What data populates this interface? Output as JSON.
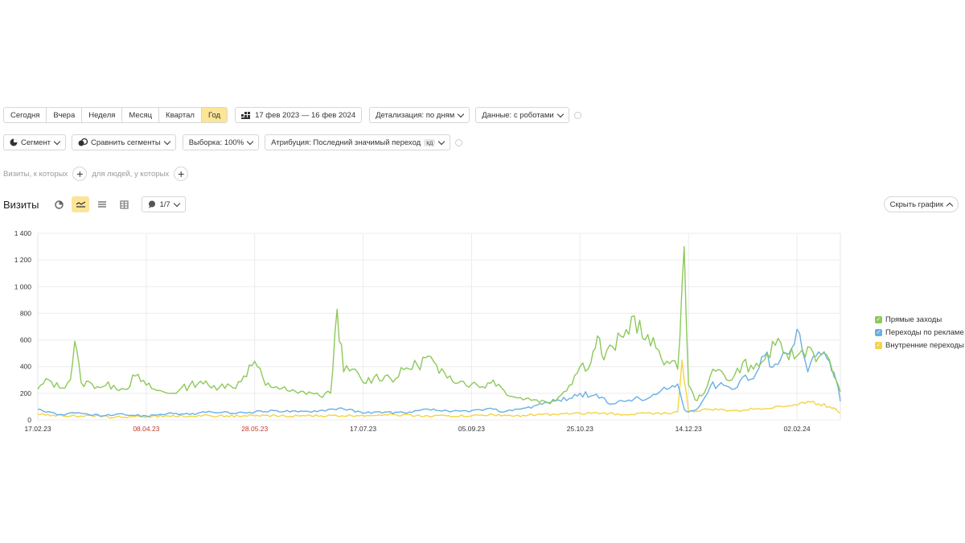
{
  "toolbar1": {
    "periods": [
      "Сегодня",
      "Вчера",
      "Неделя",
      "Месяц",
      "Квартал",
      "Год"
    ],
    "active_period": "Год",
    "date_range": "17 фев 2023 — 16 фев 2024",
    "detail": "Детализация: по дням",
    "data": "Данные: с роботами"
  },
  "toolbar2": {
    "segment": "Сегмент",
    "compare": "Сравнить сегменты",
    "sample": "Выборка: 100%",
    "attribution": "Атрибуция: Последний значимый переход",
    "attribution_badge": "кд"
  },
  "filters": {
    "visits_label": "Визиты, к которых",
    "people_label": "для людей, у которых"
  },
  "report": {
    "title": "Визиты",
    "metrics_count": "1/7",
    "hide_chart": "Скрыть график"
  },
  "colors": {
    "accent": "#fbe597",
    "green": "#8dc95a",
    "blue": "#6ab0e3",
    "yellow": "#f3d444",
    "red_label": "#c0392b"
  },
  "chart_data": {
    "type": "line",
    "xlabel": "",
    "ylabel": "",
    "ylim": [
      0,
      1400
    ],
    "y_ticks": [
      "0",
      "200",
      "400",
      "600",
      "800",
      "1 000",
      "1 200",
      "1 400"
    ],
    "x_ticks": [
      {
        "label": "17.02.23",
        "day": 0,
        "weekend": false
      },
      {
        "label": "08.04.23",
        "day": 50,
        "weekend": true
      },
      {
        "label": "28.05.23",
        "day": 100,
        "weekend": true
      },
      {
        "label": "17.07.23",
        "day": 150,
        "weekend": false
      },
      {
        "label": "05.09.23",
        "day": 200,
        "weekend": false
      },
      {
        "label": "25.10.23",
        "day": 250,
        "weekend": false
      },
      {
        "label": "14.12.23",
        "day": 300,
        "weekend": false
      },
      {
        "label": "02.02.24",
        "day": 350,
        "weekend": false
      }
    ],
    "grid": true,
    "legend_position": "right",
    "series": [
      {
        "name": "Прямые заходы",
        "color": "#8dc95a",
        "points": [
          [
            0,
            230
          ],
          [
            5,
            300
          ],
          [
            10,
            240
          ],
          [
            15,
            300
          ],
          [
            17,
            590
          ],
          [
            20,
            280
          ],
          [
            25,
            270
          ],
          [
            30,
            250
          ],
          [
            35,
            260
          ],
          [
            40,
            230
          ],
          [
            45,
            330
          ],
          [
            50,
            260
          ],
          [
            55,
            220
          ],
          [
            60,
            200
          ],
          [
            65,
            220
          ],
          [
            70,
            260
          ],
          [
            75,
            290
          ],
          [
            80,
            240
          ],
          [
            85,
            270
          ],
          [
            90,
            240
          ],
          [
            95,
            330
          ],
          [
            100,
            440
          ],
          [
            105,
            260
          ],
          [
            110,
            250
          ],
          [
            115,
            220
          ],
          [
            120,
            200
          ],
          [
            125,
            210
          ],
          [
            130,
            180
          ],
          [
            135,
            200
          ],
          [
            138,
            830
          ],
          [
            141,
            360
          ],
          [
            145,
            380
          ],
          [
            150,
            280
          ],
          [
            155,
            320
          ],
          [
            160,
            330
          ],
          [
            165,
            310
          ],
          [
            170,
            390
          ],
          [
            175,
            410
          ],
          [
            180,
            480
          ],
          [
            185,
            350
          ],
          [
            190,
            330
          ],
          [
            195,
            290
          ],
          [
            200,
            270
          ],
          [
            205,
            250
          ],
          [
            210,
            300
          ],
          [
            215,
            220
          ],
          [
            220,
            170
          ],
          [
            225,
            160
          ],
          [
            230,
            150
          ],
          [
            235,
            130
          ],
          [
            240,
            170
          ],
          [
            245,
            260
          ],
          [
            250,
            400
          ],
          [
            255,
            430
          ],
          [
            258,
            630
          ],
          [
            261,
            450
          ],
          [
            265,
            550
          ],
          [
            270,
            620
          ],
          [
            275,
            780
          ],
          [
            280,
            600
          ],
          [
            285,
            540
          ],
          [
            290,
            440
          ],
          [
            295,
            380
          ],
          [
            298,
            1300
          ],
          [
            300,
            260
          ],
          [
            303,
            150
          ],
          [
            306,
            180
          ],
          [
            310,
            330
          ],
          [
            315,
            370
          ],
          [
            320,
            300
          ],
          [
            325,
            430
          ],
          [
            330,
            380
          ],
          [
            335,
            450
          ],
          [
            340,
            560
          ],
          [
            345,
            500
          ],
          [
            350,
            480
          ],
          [
            355,
            550
          ],
          [
            360,
            470
          ],
          [
            365,
            450
          ],
          [
            368,
            300
          ],
          [
            370,
            210
          ]
        ]
      },
      {
        "name": "Переходы по рекламе",
        "color": "#6ab0e3",
        "points": [
          [
            0,
            80
          ],
          [
            10,
            40
          ],
          [
            20,
            50
          ],
          [
            30,
            30
          ],
          [
            40,
            40
          ],
          [
            50,
            30
          ],
          [
            60,
            50
          ],
          [
            70,
            40
          ],
          [
            80,
            60
          ],
          [
            90,
            50
          ],
          [
            100,
            60
          ],
          [
            110,
            70
          ],
          [
            120,
            60
          ],
          [
            130,
            70
          ],
          [
            140,
            90
          ],
          [
            150,
            50
          ],
          [
            160,
            60
          ],
          [
            170,
            50
          ],
          [
            180,
            80
          ],
          [
            190,
            60
          ],
          [
            200,
            70
          ],
          [
            210,
            80
          ],
          [
            215,
            60
          ],
          [
            220,
            80
          ],
          [
            225,
            90
          ],
          [
            230,
            110
          ],
          [
            235,
            130
          ],
          [
            240,
            150
          ],
          [
            245,
            160
          ],
          [
            250,
            200
          ],
          [
            255,
            180
          ],
          [
            260,
            170
          ],
          [
            265,
            120
          ],
          [
            270,
            140
          ],
          [
            275,
            160
          ],
          [
            280,
            150
          ],
          [
            285,
            190
          ],
          [
            290,
            230
          ],
          [
            295,
            270
          ],
          [
            298,
            80
          ],
          [
            300,
            60
          ],
          [
            305,
            100
          ],
          [
            310,
            250
          ],
          [
            315,
            280
          ],
          [
            320,
            230
          ],
          [
            325,
            320
          ],
          [
            330,
            310
          ],
          [
            335,
            480
          ],
          [
            340,
            420
          ],
          [
            345,
            500
          ],
          [
            350,
            680
          ],
          [
            355,
            360
          ],
          [
            360,
            510
          ],
          [
            365,
            440
          ],
          [
            368,
            300
          ],
          [
            370,
            140
          ]
        ]
      },
      {
        "name": "Внутренние переходы",
        "color": "#f3d444",
        "points": [
          [
            0,
            40
          ],
          [
            20,
            30
          ],
          [
            40,
            20
          ],
          [
            60,
            30
          ],
          [
            80,
            30
          ],
          [
            100,
            30
          ],
          [
            120,
            30
          ],
          [
            140,
            30
          ],
          [
            160,
            40
          ],
          [
            180,
            30
          ],
          [
            200,
            30
          ],
          [
            210,
            40
          ],
          [
            220,
            30
          ],
          [
            230,
            40
          ],
          [
            240,
            40
          ],
          [
            250,
            50
          ],
          [
            260,
            50
          ],
          [
            270,
            40
          ],
          [
            280,
            50
          ],
          [
            290,
            50
          ],
          [
            295,
            60
          ],
          [
            297,
            450
          ],
          [
            300,
            60
          ],
          [
            310,
            80
          ],
          [
            320,
            70
          ],
          [
            330,
            80
          ],
          [
            340,
            100
          ],
          [
            350,
            110
          ],
          [
            355,
            140
          ],
          [
            360,
            120
          ],
          [
            365,
            100
          ],
          [
            368,
            80
          ],
          [
            370,
            50
          ]
        ]
      }
    ]
  }
}
